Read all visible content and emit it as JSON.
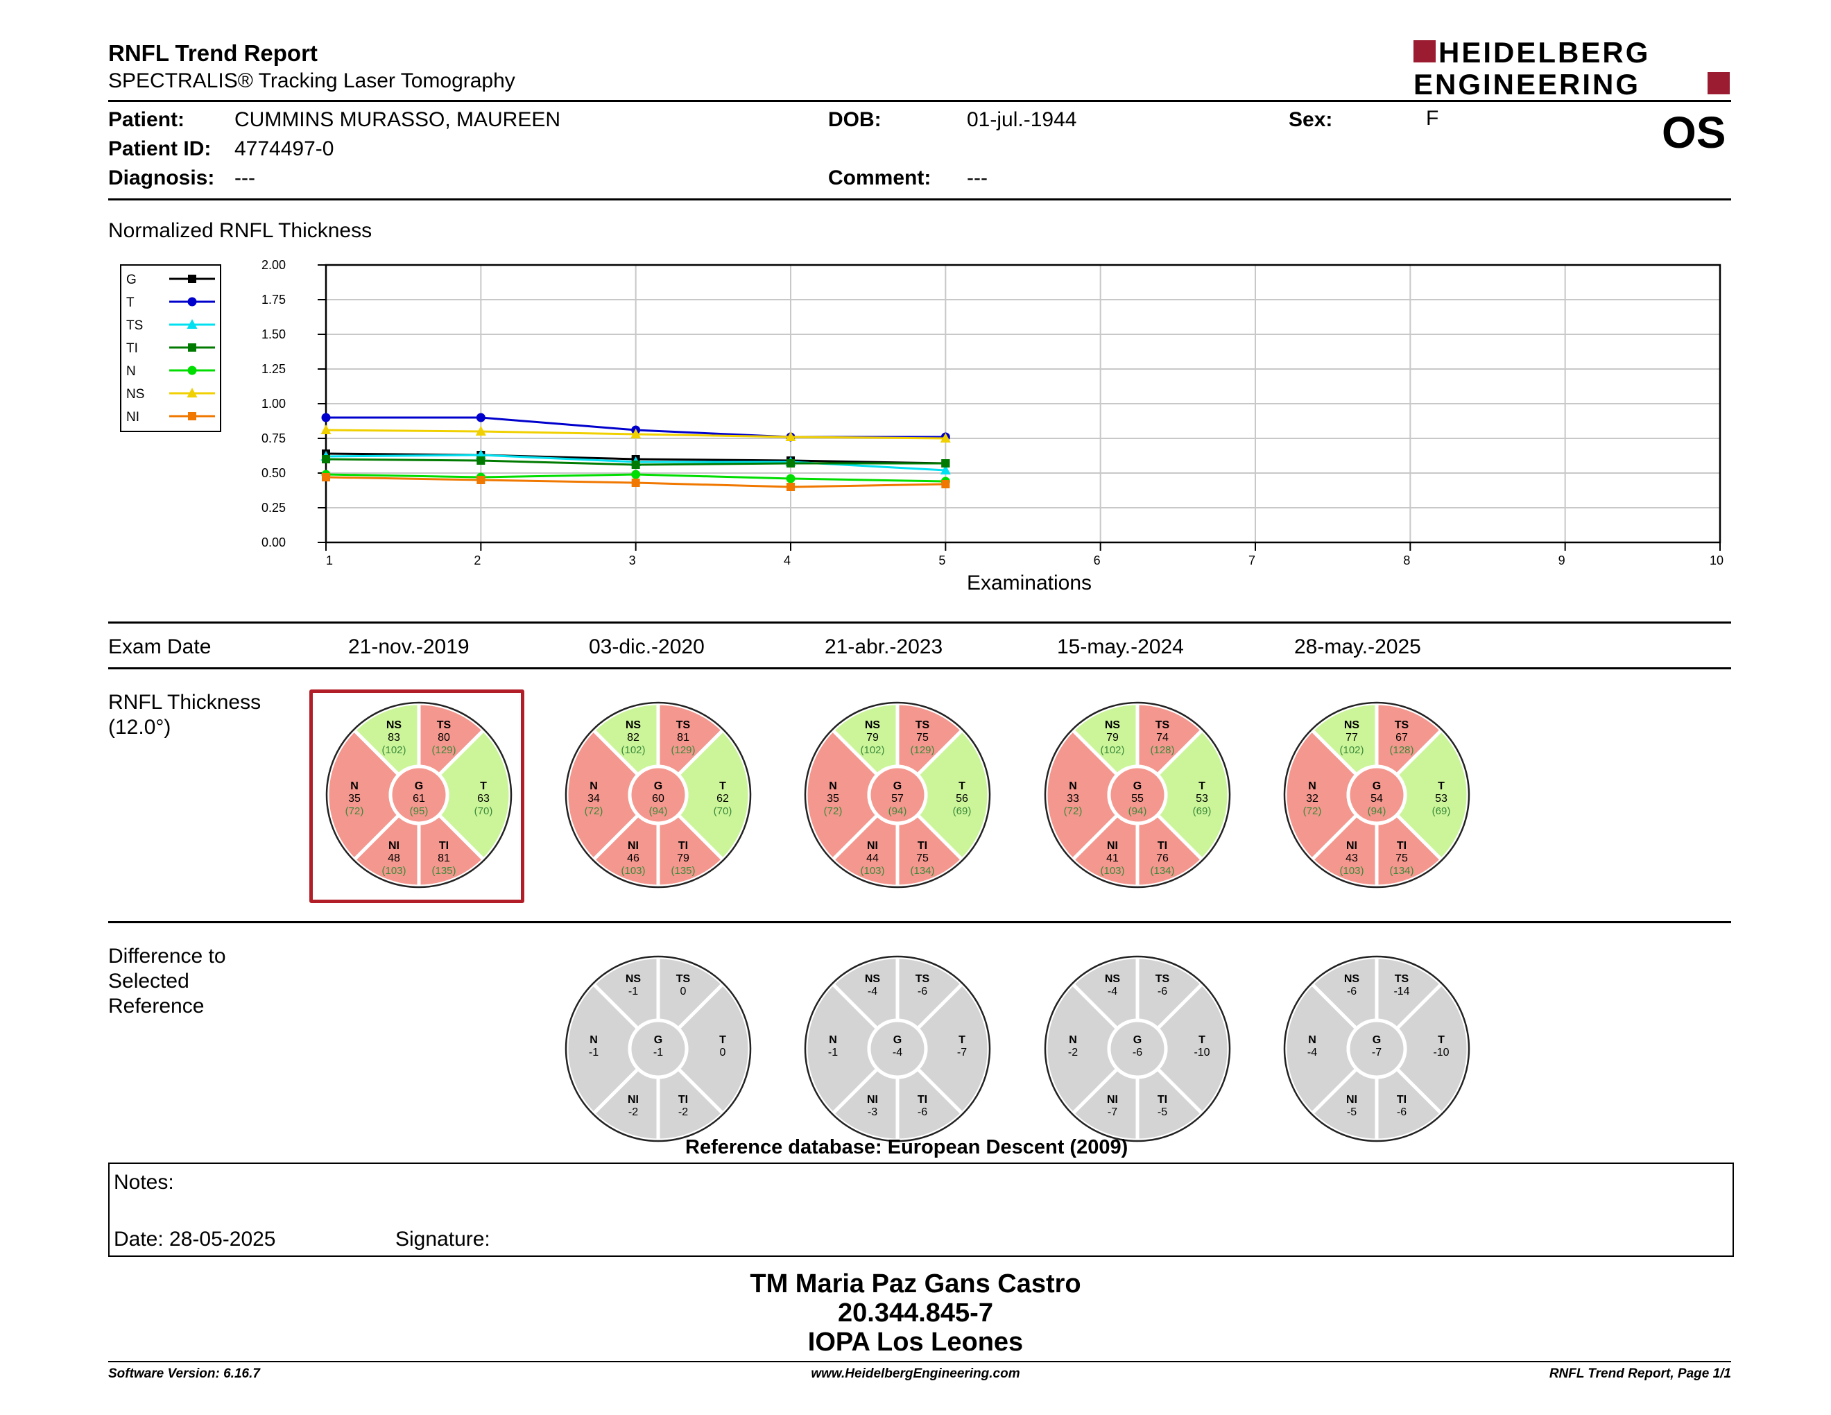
{
  "header": {
    "title": "RNFL Trend Report",
    "subtitle": "SPECTRALIS® Tracking Laser Tomography",
    "logo_line1": "HEIDELBERG",
    "logo_line2": "ENGINEERING",
    "eye": "OS"
  },
  "patient": {
    "patient_label": "Patient:",
    "patient_value": "CUMMINS MURASSO, MAUREEN",
    "id_label": "Patient ID:",
    "id_value": "4774497-0",
    "diagnosis_label": "Diagnosis:",
    "diagnosis_value": "---",
    "dob_label": "DOB:",
    "dob_value": "01-jul.-1944",
    "comment_label": "Comment:",
    "comment_value": "---",
    "sex_label": "Sex:",
    "sex_value": "F"
  },
  "chart_title": "Normalized RNFL Thickness",
  "chart_data": {
    "type": "line",
    "title": "Normalized RNFL Thickness",
    "xlabel": "Examinations",
    "ylabel": "",
    "x": [
      1,
      2,
      3,
      4,
      5
    ],
    "xlim": [
      1,
      10
    ],
    "ylim": [
      0,
      2
    ],
    "xticks": [
      "1",
      "2",
      "3",
      "4",
      "5",
      "6",
      "7",
      "8",
      "9",
      "10"
    ],
    "yticks": [
      "0.00",
      "0.25",
      "0.50",
      "0.75",
      "1.00",
      "1.25",
      "1.50",
      "1.75",
      "2.00"
    ],
    "grid": true,
    "legend_position": "left",
    "series": [
      {
        "name": "G",
        "color": "#000000",
        "marker": "square",
        "values": [
          0.64,
          0.63,
          0.6,
          0.59,
          0.57
        ]
      },
      {
        "name": "T",
        "color": "#0000cc",
        "marker": "circle",
        "values": [
          0.9,
          0.9,
          0.81,
          0.76,
          0.76
        ]
      },
      {
        "name": "TS",
        "color": "#00e0f0",
        "marker": "triangle",
        "values": [
          0.62,
          0.63,
          0.58,
          0.58,
          0.52
        ]
      },
      {
        "name": "TI",
        "color": "#007a00",
        "marker": "square",
        "values": [
          0.6,
          0.59,
          0.56,
          0.57,
          0.57
        ]
      },
      {
        "name": "N",
        "color": "#00dd00",
        "marker": "circle",
        "values": [
          0.49,
          0.47,
          0.49,
          0.46,
          0.44
        ]
      },
      {
        "name": "NS",
        "color": "#f0d000",
        "marker": "triangle",
        "values": [
          0.81,
          0.8,
          0.78,
          0.76,
          0.75
        ]
      },
      {
        "name": "NI",
        "color": "#f07800",
        "marker": "square",
        "values": [
          0.47,
          0.45,
          0.43,
          0.4,
          0.42
        ]
      }
    ]
  },
  "exam_label": "Exam Date",
  "exams": [
    {
      "date": "21-nov.-2019",
      "thickness": {
        "NS": [
          "83",
          "(102)"
        ],
        "TS": [
          "80",
          "(129)"
        ],
        "N": [
          "35",
          "(72)"
        ],
        "G": [
          "61",
          "(95)"
        ],
        "T": [
          "63",
          "(70)"
        ],
        "NI": [
          "48",
          "(103)"
        ],
        "TI": [
          "81",
          "(135)"
        ]
      },
      "colors": {
        "NS": "green",
        "TS": "red",
        "N": "red",
        "T": "green",
        "NI": "red",
        "TI": "red",
        "G": "red"
      },
      "diff": null
    },
    {
      "date": "03-dic.-2020",
      "thickness": {
        "NS": [
          "82",
          "(102)"
        ],
        "TS": [
          "81",
          "(129)"
        ],
        "N": [
          "34",
          "(72)"
        ],
        "G": [
          "60",
          "(94)"
        ],
        "T": [
          "62",
          "(70)"
        ],
        "NI": [
          "46",
          "(103)"
        ],
        "TI": [
          "79",
          "(135)"
        ]
      },
      "colors": {
        "NS": "green",
        "TS": "red",
        "N": "red",
        "T": "green",
        "NI": "red",
        "TI": "red",
        "G": "red"
      },
      "diff": {
        "NS": "-1",
        "TS": "0",
        "N": "-1",
        "G": "-1",
        "T": "0",
        "NI": "-2",
        "TI": "-2"
      }
    },
    {
      "date": "21-abr.-2023",
      "thickness": {
        "NS": [
          "79",
          "(102)"
        ],
        "TS": [
          "75",
          "(129)"
        ],
        "N": [
          "35",
          "(72)"
        ],
        "G": [
          "57",
          "(94)"
        ],
        "T": [
          "56",
          "(69)"
        ],
        "NI": [
          "44",
          "(103)"
        ],
        "TI": [
          "75",
          "(134)"
        ]
      },
      "colors": {
        "NS": "green",
        "TS": "red",
        "N": "red",
        "T": "green",
        "NI": "red",
        "TI": "red",
        "G": "red"
      },
      "diff": {
        "NS": "-4",
        "TS": "-6",
        "N": "-1",
        "G": "-4",
        "T": "-7",
        "NI": "-3",
        "TI": "-6"
      }
    },
    {
      "date": "15-may.-2024",
      "thickness": {
        "NS": [
          "79",
          "(102)"
        ],
        "TS": [
          "74",
          "(128)"
        ],
        "N": [
          "33",
          "(72)"
        ],
        "G": [
          "55",
          "(94)"
        ],
        "T": [
          "53",
          "(69)"
        ],
        "NI": [
          "41",
          "(103)"
        ],
        "TI": [
          "76",
          "(134)"
        ]
      },
      "colors": {
        "NS": "green",
        "TS": "red",
        "N": "red",
        "T": "green",
        "NI": "red",
        "TI": "red",
        "G": "red"
      },
      "diff": {
        "NS": "-4",
        "TS": "-6",
        "N": "-2",
        "G": "-6",
        "T": "-10",
        "NI": "-7",
        "TI": "-5"
      }
    },
    {
      "date": "28-may.-2025",
      "thickness": {
        "NS": [
          "77",
          "(102)"
        ],
        "TS": [
          "67",
          "(128)"
        ],
        "N": [
          "32",
          "(72)"
        ],
        "G": [
          "54",
          "(94)"
        ],
        "T": [
          "53",
          "(69)"
        ],
        "NI": [
          "43",
          "(103)"
        ],
        "TI": [
          "75",
          "(134)"
        ]
      },
      "colors": {
        "NS": "green",
        "TS": "red",
        "N": "red",
        "T": "green",
        "NI": "red",
        "TI": "red",
        "G": "red"
      },
      "diff": {
        "NS": "-6",
        "TS": "-14",
        "N": "-4",
        "G": "-7",
        "T": "-10",
        "NI": "-5",
        "TI": "-6"
      }
    }
  ],
  "thickness_label_1": "RNFL Thickness",
  "thickness_label_2": "(12.0°)",
  "diff_label_1": "Difference to",
  "diff_label_2": "Selected",
  "diff_label_3": "Reference",
  "reference_db": "Reference database: European Descent (2009)",
  "notes": {
    "label": "Notes:",
    "date_label": "Date: 28-05-2025",
    "signature_label": "Signature:"
  },
  "signer": {
    "name": "TM Maria Paz Gans Castro",
    "id": "20.344.845-7",
    "institution": "IOPA Los Leones"
  },
  "footer": {
    "software": "Software Version: 6.16.7",
    "website": "www.HeidelbergEngineering.com",
    "page": "RNFL Trend Report, Page 1/1"
  },
  "palette": {
    "red": "#f4978e",
    "green": "#ccf59a",
    "gray": "#d4d4d4",
    "value_green": "#3a8a3a",
    "select_border": "#b21e28",
    "logo": "#9b1b30"
  }
}
